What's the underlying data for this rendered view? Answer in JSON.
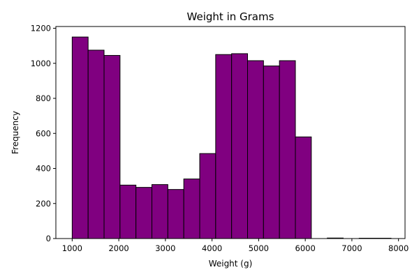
{
  "chart_data": {
    "type": "histogram",
    "title": "Weight in Grams",
    "xlabel": "Weight (g)",
    "ylabel": "Frequency",
    "xlim": [
      650,
      8140
    ],
    "ylim": [
      0,
      1210
    ],
    "xticks": [
      1000,
      2000,
      3000,
      4000,
      5000,
      6000,
      7000,
      8000
    ],
    "yticks": [
      0,
      200,
      400,
      600,
      800,
      1000,
      1200
    ],
    "bar_color": "#800080",
    "edge_color": "#000000",
    "grid": false,
    "bins": [
      {
        "x0": 1000,
        "x1": 1342,
        "count": 1150
      },
      {
        "x0": 1342,
        "x1": 1684,
        "count": 1075
      },
      {
        "x0": 1684,
        "x1": 2026,
        "count": 1045
      },
      {
        "x0": 2026,
        "x1": 2368,
        "count": 305
      },
      {
        "x0": 2368,
        "x1": 2710,
        "count": 292
      },
      {
        "x0": 2710,
        "x1": 3052,
        "count": 308
      },
      {
        "x0": 3052,
        "x1": 3394,
        "count": 280
      },
      {
        "x0": 3394,
        "x1": 3736,
        "count": 340
      },
      {
        "x0": 3736,
        "x1": 4078,
        "count": 485
      },
      {
        "x0": 4078,
        "x1": 4420,
        "count": 1050
      },
      {
        "x0": 4420,
        "x1": 4762,
        "count": 1055
      },
      {
        "x0": 4762,
        "x1": 5104,
        "count": 1015
      },
      {
        "x0": 5104,
        "x1": 5446,
        "count": 985
      },
      {
        "x0": 5446,
        "x1": 5788,
        "count": 1015
      },
      {
        "x0": 5788,
        "x1": 6130,
        "count": 580
      },
      {
        "x0": 6130,
        "x1": 6472,
        "count": 0
      },
      {
        "x0": 6472,
        "x1": 6814,
        "count": 3
      },
      {
        "x0": 6814,
        "x1": 7156,
        "count": 0
      },
      {
        "x0": 7156,
        "x1": 7498,
        "count": 2
      },
      {
        "x0": 7498,
        "x1": 7840,
        "count": 2
      }
    ]
  }
}
